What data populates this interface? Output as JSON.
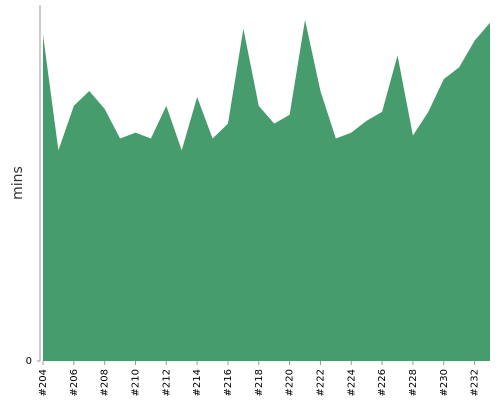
{
  "chart_data": {
    "type": "area",
    "y_label": "mins",
    "color": "#469c6c",
    "categories": [
      "#204",
      null,
      "#206",
      null,
      "#208",
      null,
      "#210",
      null,
      "#212",
      null,
      "#214",
      null,
      "#216",
      null,
      "#218",
      null,
      "#220",
      null,
      "#222",
      null,
      "#224",
      null,
      "#226",
      null,
      "#228",
      null,
      "#230",
      null,
      "#232",
      null
    ],
    "values": [
      11.0,
      7.1,
      8.6,
      9.1,
      8.5,
      7.5,
      7.7,
      7.5,
      8.6,
      7.1,
      8.9,
      7.5,
      8.0,
      11.2,
      8.6,
      8.0,
      8.3,
      11.5,
      9.1,
      7.5,
      7.7,
      8.1,
      8.4,
      10.3,
      7.6,
      8.4,
      9.5,
      9.9,
      10.8,
      11.4
    ],
    "ylim": [
      0,
      12
    ],
    "yticks": [
      0
    ]
  }
}
